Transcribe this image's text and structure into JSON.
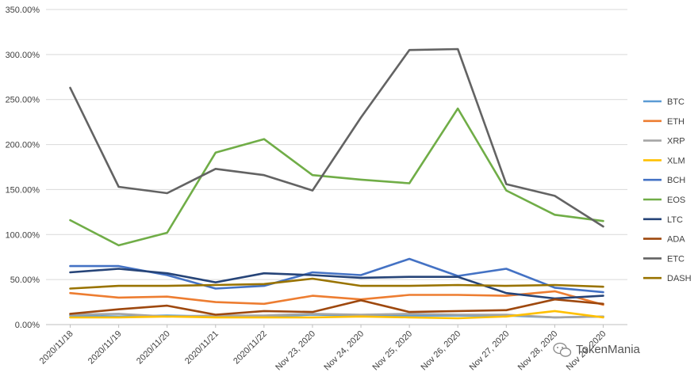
{
  "chart_data": {
    "type": "line",
    "categories": [
      "2020/11/18",
      "2020/11/19",
      "2020/11/20",
      "2020/11/21",
      "2020/11/22",
      "Nov 23, 2020",
      "Nov 24, 2020",
      "Nov 25, 2020",
      "Nov 26, 2020",
      "Nov 27, 2020",
      "Nov 28, 2020",
      "Nov 29, 2020"
    ],
    "ylim": [
      0,
      350
    ],
    "yticks": [
      0,
      50,
      100,
      150,
      200,
      250,
      300,
      350
    ],
    "ytick_labels": [
      "0.00%",
      "50.00%",
      "100.00%",
      "150.00%",
      "200.00%",
      "250.00%",
      "300.00%",
      "350.00%"
    ],
    "grid": true,
    "legend_position": "right",
    "series": [
      {
        "name": "BTC",
        "color": "#5b9bd5",
        "values": [
          10,
          9,
          10,
          9,
          9,
          11,
          10,
          10,
          10,
          10,
          8,
          9
        ]
      },
      {
        "name": "ETH",
        "color": "#ed7d31",
        "values": [
          35,
          30,
          31,
          25,
          23,
          32,
          28,
          33,
          33,
          32,
          37,
          22
        ]
      },
      {
        "name": "XRP",
        "color": "#a5a5a5",
        "values": [
          11,
          12,
          9,
          10,
          10,
          12,
          11,
          12,
          11,
          11,
          8,
          9
        ]
      },
      {
        "name": "XLM",
        "color": "#ffc000",
        "values": [
          8,
          8,
          9,
          8,
          8,
          8,
          9,
          8,
          7,
          9,
          15,
          8
        ]
      },
      {
        "name": "BCH",
        "color": "#4472c4",
        "values": [
          65,
          65,
          55,
          40,
          43,
          58,
          55,
          73,
          54,
          62,
          41,
          36
        ]
      },
      {
        "name": "EOS",
        "color": "#70ad47",
        "values": [
          116,
          88,
          102,
          191,
          206,
          166,
          161,
          157,
          240,
          149,
          122,
          115
        ]
      },
      {
        "name": "LTC",
        "color": "#264478",
        "values": [
          58,
          62,
          57,
          47,
          57,
          55,
          52,
          53,
          53,
          35,
          29,
          32
        ]
      },
      {
        "name": "ADA",
        "color": "#9e480e",
        "values": [
          12,
          17,
          21,
          11,
          15,
          14,
          27,
          14,
          15,
          16,
          28,
          23
        ]
      },
      {
        "name": "ETC",
        "color": "#636363",
        "values": [
          263,
          153,
          146,
          173,
          166,
          149,
          230,
          305,
          306,
          156,
          143,
          109
        ]
      },
      {
        "name": "DASH",
        "color": "#997300",
        "values": [
          40,
          43,
          43,
          44,
          45,
          51,
          43,
          43,
          44,
          43,
          44,
          42
        ]
      }
    ]
  },
  "watermark": {
    "text": "TokenMania",
    "icon": "wechat-icon"
  }
}
